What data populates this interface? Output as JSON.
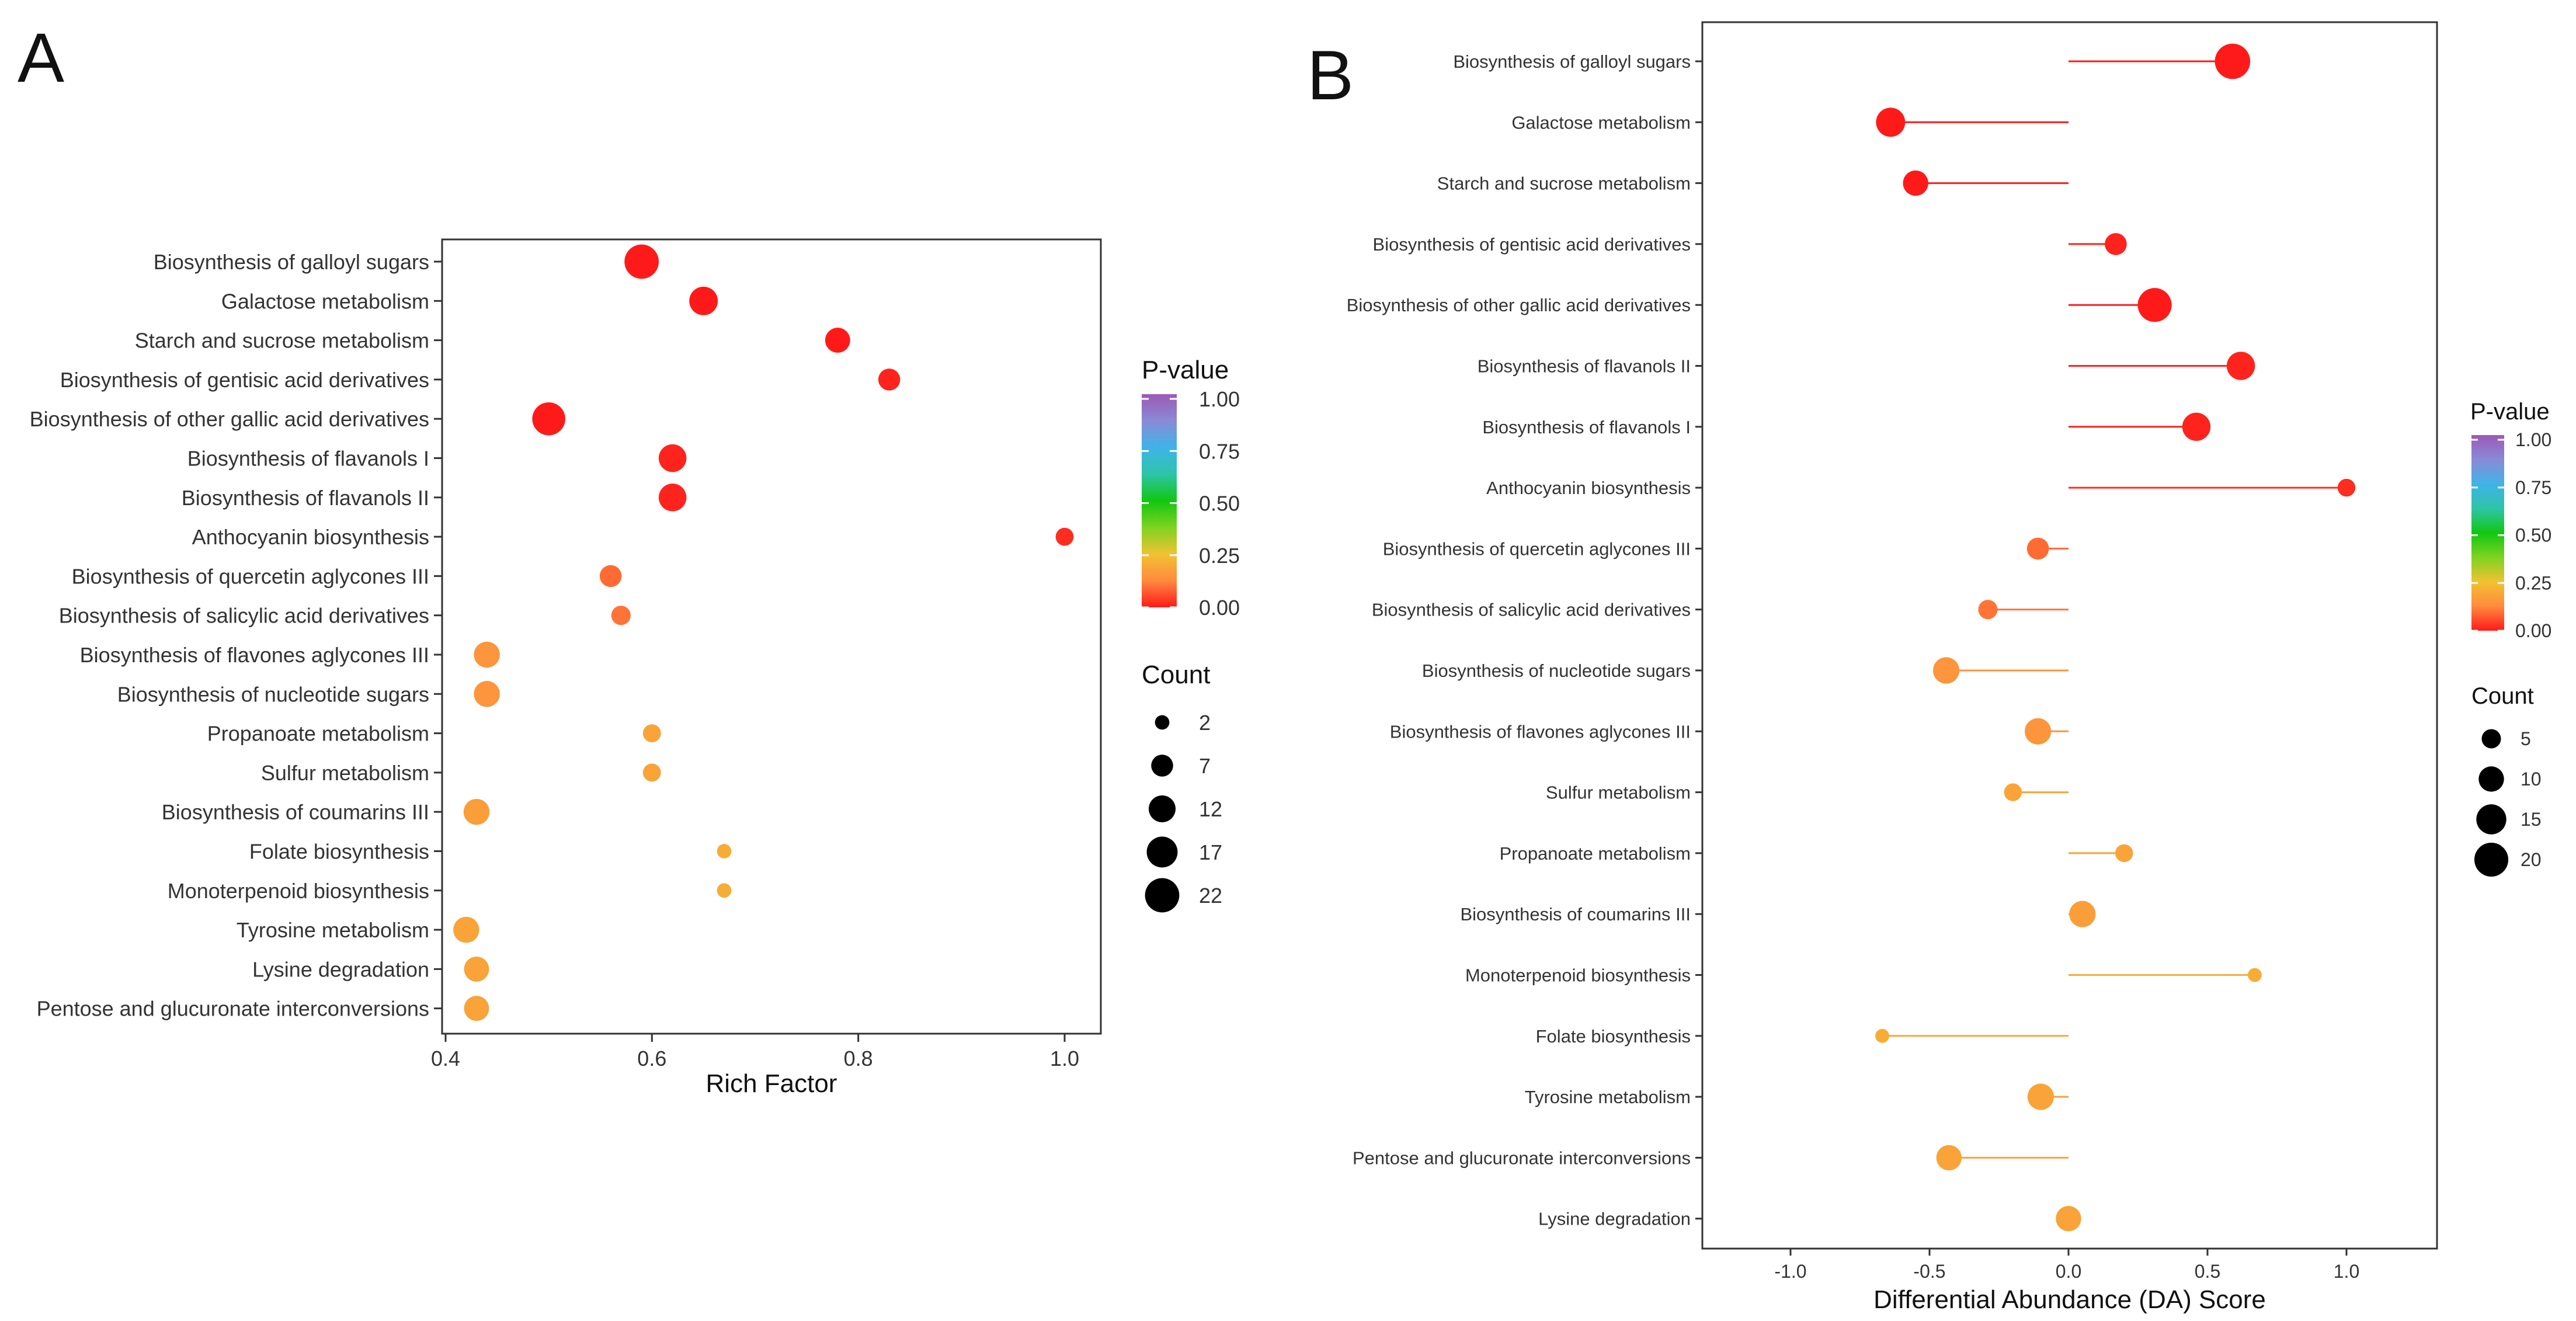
{
  "panels": {
    "a_letter": "A",
    "b_letter": "B"
  },
  "colors": {
    "gradient": [
      "#ff1a1a",
      "#ff8a3d",
      "#f1c232",
      "#7ed321",
      "#11c711",
      "#2ec4a8",
      "#3fb3e8",
      "#8a8ad6",
      "#9b59b6"
    ],
    "frame": "#333333",
    "text": "#333333"
  },
  "chart_data": [
    {
      "type": "scatter",
      "xlabel": "Rich Factor",
      "ylabel": "",
      "xlim": [
        0.4,
        1.0
      ],
      "xticks": [
        "0.4",
        "0.6",
        "0.8",
        "1.0"
      ],
      "categories": [
        "Biosynthesis of galloyl sugars",
        "Galactose metabolism",
        "Starch and sucrose metabolism",
        "Biosynthesis of gentisic acid derivatives",
        "Biosynthesis of other gallic acid derivatives",
        "Biosynthesis of flavanols I",
        "Biosynthesis of flavanols II",
        "Anthocyanin biosynthesis",
        "Biosynthesis of quercetin aglycones III",
        "Biosynthesis of salicylic acid derivatives",
        "Biosynthesis of flavones aglycones III",
        "Biosynthesis of nucleotide sugars",
        "Propanoate metabolism",
        "Sulfur metabolism",
        "Biosynthesis of coumarins III",
        "Folate biosynthesis",
        "Monoterpenoid biosynthesis",
        "Tyrosine metabolism",
        "Lysine degradation",
        "Pentose and glucuronate interconversions"
      ],
      "x": [
        0.59,
        0.65,
        0.78,
        0.83,
        0.5,
        0.62,
        0.62,
        1.0,
        0.56,
        0.57,
        0.44,
        0.44,
        0.6,
        0.6,
        0.43,
        0.67,
        0.67,
        0.42,
        0.43,
        0.43
      ],
      "count": [
        22,
        14,
        10,
        7,
        20,
        13,
        13,
        4,
        7,
        5,
        11,
        11,
        4,
        4,
        11,
        2,
        2,
        11,
        10,
        10
      ],
      "pvalue": [
        0.0,
        0.0,
        0.0,
        0.01,
        0.0,
        0.01,
        0.01,
        0.02,
        0.09,
        0.1,
        0.15,
        0.15,
        0.18,
        0.18,
        0.17,
        0.2,
        0.2,
        0.18,
        0.18,
        0.18
      ],
      "legend": {
        "pvalue_title": "P-value",
        "pvalue_ticks": [
          "1.00",
          "0.75",
          "0.50",
          "0.25",
          "0.00"
        ],
        "count_title": "Count",
        "count_ticks": [
          "2",
          "7",
          "12",
          "17",
          "22"
        ]
      }
    },
    {
      "type": "lollipop",
      "xlabel": "Differential Abundance (DA) Score",
      "ylabel": "",
      "xlim": [
        -1.3,
        1.3
      ],
      "xticks": [
        "-1.0",
        "-0.5",
        "0.0",
        "0.5",
        "1.0"
      ],
      "categories": [
        "Biosynthesis of galloyl sugars",
        "Galactose metabolism",
        "Starch and sucrose metabolism",
        "Biosynthesis of gentisic acid derivatives",
        "Biosynthesis of other gallic acid derivatives",
        "Biosynthesis of flavanols II",
        "Biosynthesis of flavanols I",
        "Anthocyanin biosynthesis",
        "Biosynthesis of quercetin aglycones III",
        "Biosynthesis of salicylic acid derivatives",
        "Biosynthesis of nucleotide sugars",
        "Biosynthesis of flavones aglycones III",
        "Sulfur metabolism",
        "Propanoate metabolism",
        "Biosynthesis of coumarins III",
        "Monoterpenoid biosynthesis",
        "Folate biosynthesis",
        "Tyrosine metabolism",
        "Pentose and glucuronate interconversions",
        "Lysine degradation"
      ],
      "x": [
        0.59,
        -0.64,
        -0.55,
        0.17,
        0.31,
        0.62,
        0.46,
        1.0,
        -0.11,
        -0.29,
        -0.44,
        -0.11,
        -0.2,
        0.2,
        0.05,
        0.67,
        -0.67,
        -0.1,
        -0.43,
        0.0
      ],
      "count": [
        22,
        14,
        10,
        7,
        20,
        13,
        13,
        4,
        7,
        5,
        11,
        11,
        4,
        4,
        11,
        2,
        2,
        11,
        10,
        10
      ],
      "pvalue": [
        0.0,
        0.0,
        0.0,
        0.01,
        0.0,
        0.01,
        0.01,
        0.02,
        0.09,
        0.1,
        0.15,
        0.15,
        0.18,
        0.18,
        0.17,
        0.2,
        0.2,
        0.18,
        0.18,
        0.18
      ],
      "legend": {
        "pvalue_title": "P-value",
        "pvalue_ticks": [
          "1.00",
          "0.75",
          "0.50",
          "0.25",
          "0.00"
        ],
        "count_title": "Count",
        "count_ticks": [
          "5",
          "10",
          "15",
          "20"
        ]
      }
    }
  ]
}
